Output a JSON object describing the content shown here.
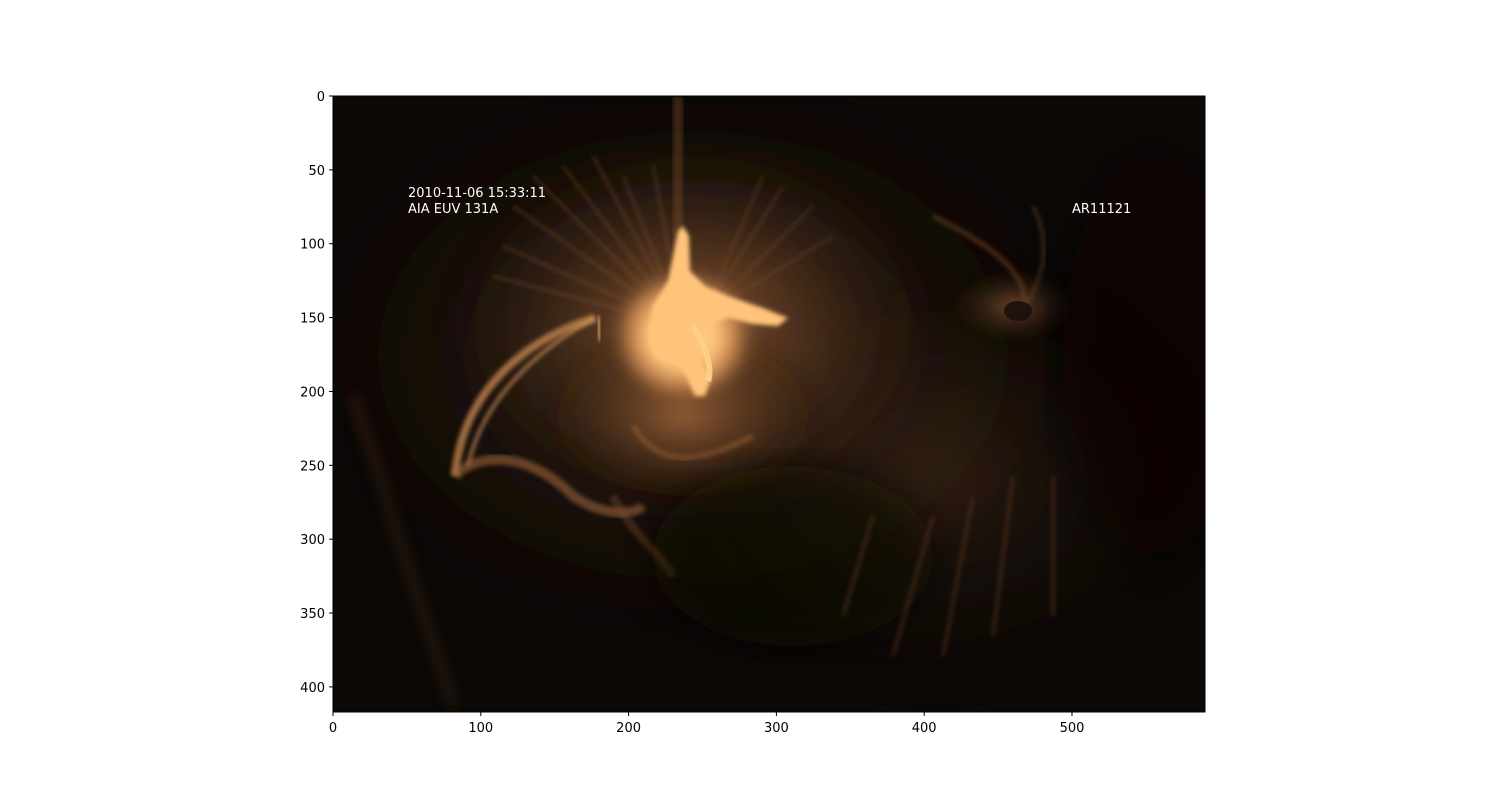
{
  "image": {
    "subject": "solar active region EUV image",
    "colormap": "sdoaia131 (dark brown to pale orange)",
    "annotations": {
      "timestamp": "2010-11-06 15:33:11",
      "instrument": "AIA EUV 131A",
      "region": "AR11121"
    }
  },
  "axes": {
    "x_ticks": [
      "0",
      "100",
      "200",
      "300",
      "400",
      "500"
    ],
    "y_ticks": [
      "0",
      "50",
      "100",
      "150",
      "200",
      "250",
      "300",
      "350",
      "400"
    ],
    "x_range": [
      0,
      590
    ],
    "y_range": [
      417,
      0
    ]
  },
  "colors": {
    "background": "#0b0806",
    "flare_core": "#ffc47a",
    "loops": "#c98a52",
    "text": "#ffffff"
  }
}
